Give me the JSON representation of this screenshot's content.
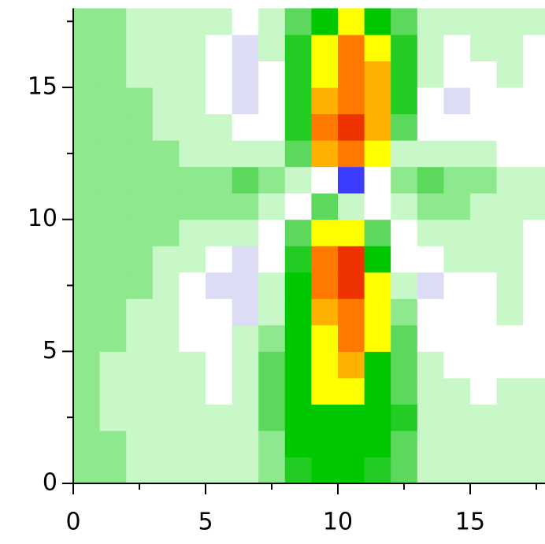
{
  "chart_data": {
    "type": "heatmap",
    "xlim": [
      0,
      18
    ],
    "ylim": [
      0,
      18
    ],
    "xticks": [
      0,
      5,
      10,
      15
    ],
    "yticks": [
      0,
      5,
      10,
      15
    ],
    "xminorticks": [
      2.5,
      7.5,
      12.5,
      17.5
    ],
    "yminorticks": [
      2.5,
      7.5,
      12.5,
      17.5
    ],
    "x": [
      0,
      1,
      2,
      3,
      4,
      5,
      6,
      7,
      8,
      9,
      10,
      11,
      12,
      13,
      14,
      15,
      16,
      17
    ],
    "y": [
      0,
      1,
      2,
      3,
      4,
      5,
      6,
      7,
      8,
      9,
      10,
      11,
      12,
      13,
      14,
      15,
      16,
      17
    ],
    "levels": [
      -2,
      -1,
      0,
      1,
      2,
      3,
      4,
      5,
      6,
      7,
      8,
      9
    ],
    "colors": [
      "#3c3cff",
      "#dcdcf5",
      "#ffffff",
      "#c8f8c8",
      "#8ee88e",
      "#5cd85c",
      "#22cc22",
      "#00c800",
      "#ffff00",
      "#ffb000",
      "#ff7800",
      "#ee3300"
    ],
    "z": [
      [
        2,
        2,
        1,
        1,
        1,
        1,
        1,
        2,
        4,
        5,
        5,
        4,
        3,
        1,
        1,
        1,
        1,
        1
      ],
      [
        2,
        2,
        1,
        1,
        1,
        1,
        1,
        2,
        5,
        5,
        5,
        5,
        3,
        1,
        1,
        1,
        1,
        1
      ],
      [
        2,
        1,
        1,
        1,
        1,
        1,
        1,
        3,
        5,
        5,
        5,
        5,
        4,
        1,
        1,
        1,
        1,
        1
      ],
      [
        2,
        1,
        1,
        1,
        1,
        0,
        1,
        3,
        5,
        6,
        6,
        5,
        3,
        1,
        1,
        0,
        1,
        1
      ],
      [
        2,
        1,
        1,
        1,
        1,
        0,
        1,
        3,
        5,
        6,
        7,
        5,
        3,
        1,
        0,
        0,
        0,
        0
      ],
      [
        2,
        2,
        1,
        1,
        0,
        0,
        1,
        2,
        5,
        6,
        8,
        6,
        3,
        0,
        0,
        0,
        0,
        0
      ],
      [
        2,
        2,
        1,
        1,
        0,
        0,
        -1,
        1,
        5,
        7,
        8,
        6,
        2,
        0,
        0,
        0,
        1,
        0
      ],
      [
        2,
        2,
        2,
        1,
        0,
        -1,
        -1,
        1,
        5,
        8,
        9,
        6,
        1,
        -1,
        0,
        0,
        1,
        0
      ],
      [
        2,
        2,
        2,
        1,
        1,
        0,
        -1,
        0,
        4,
        8,
        9,
        5,
        0,
        0,
        1,
        1,
        1,
        0
      ],
      [
        2,
        2,
        2,
        2,
        1,
        1,
        1,
        0,
        3,
        6,
        6,
        3,
        0,
        1,
        1,
        1,
        1,
        0
      ],
      [
        2,
        2,
        2,
        2,
        2,
        2,
        2,
        1,
        0,
        3,
        1,
        0,
        1,
        2,
        2,
        1,
        1,
        1
      ],
      [
        2,
        2,
        2,
        2,
        2,
        2,
        3,
        2,
        1,
        0,
        -2,
        0,
        2,
        3,
        2,
        2,
        1,
        1
      ],
      [
        2,
        2,
        2,
        2,
        1,
        1,
        1,
        1,
        3,
        7,
        8,
        6,
        1,
        1,
        1,
        1,
        0,
        0
      ],
      [
        2,
        2,
        2,
        1,
        1,
        1,
        0,
        0,
        4,
        8,
        9,
        7,
        3,
        0,
        0,
        0,
        0,
        0
      ],
      [
        2,
        2,
        2,
        1,
        1,
        0,
        -1,
        0,
        4,
        7,
        8,
        7,
        4,
        0,
        -1,
        0,
        0,
        0
      ],
      [
        2,
        2,
        1,
        1,
        1,
        0,
        -1,
        0,
        4,
        6,
        8,
        7,
        4,
        1,
        0,
        0,
        1,
        0
      ],
      [
        2,
        2,
        1,
        1,
        1,
        0,
        -1,
        1,
        4,
        6,
        8,
        6,
        4,
        1,
        0,
        1,
        1,
        0
      ],
      [
        2,
        2,
        1,
        1,
        1,
        1,
        0,
        1,
        3,
        5,
        6,
        5,
        3,
        1,
        1,
        1,
        1,
        1
      ]
    ]
  }
}
